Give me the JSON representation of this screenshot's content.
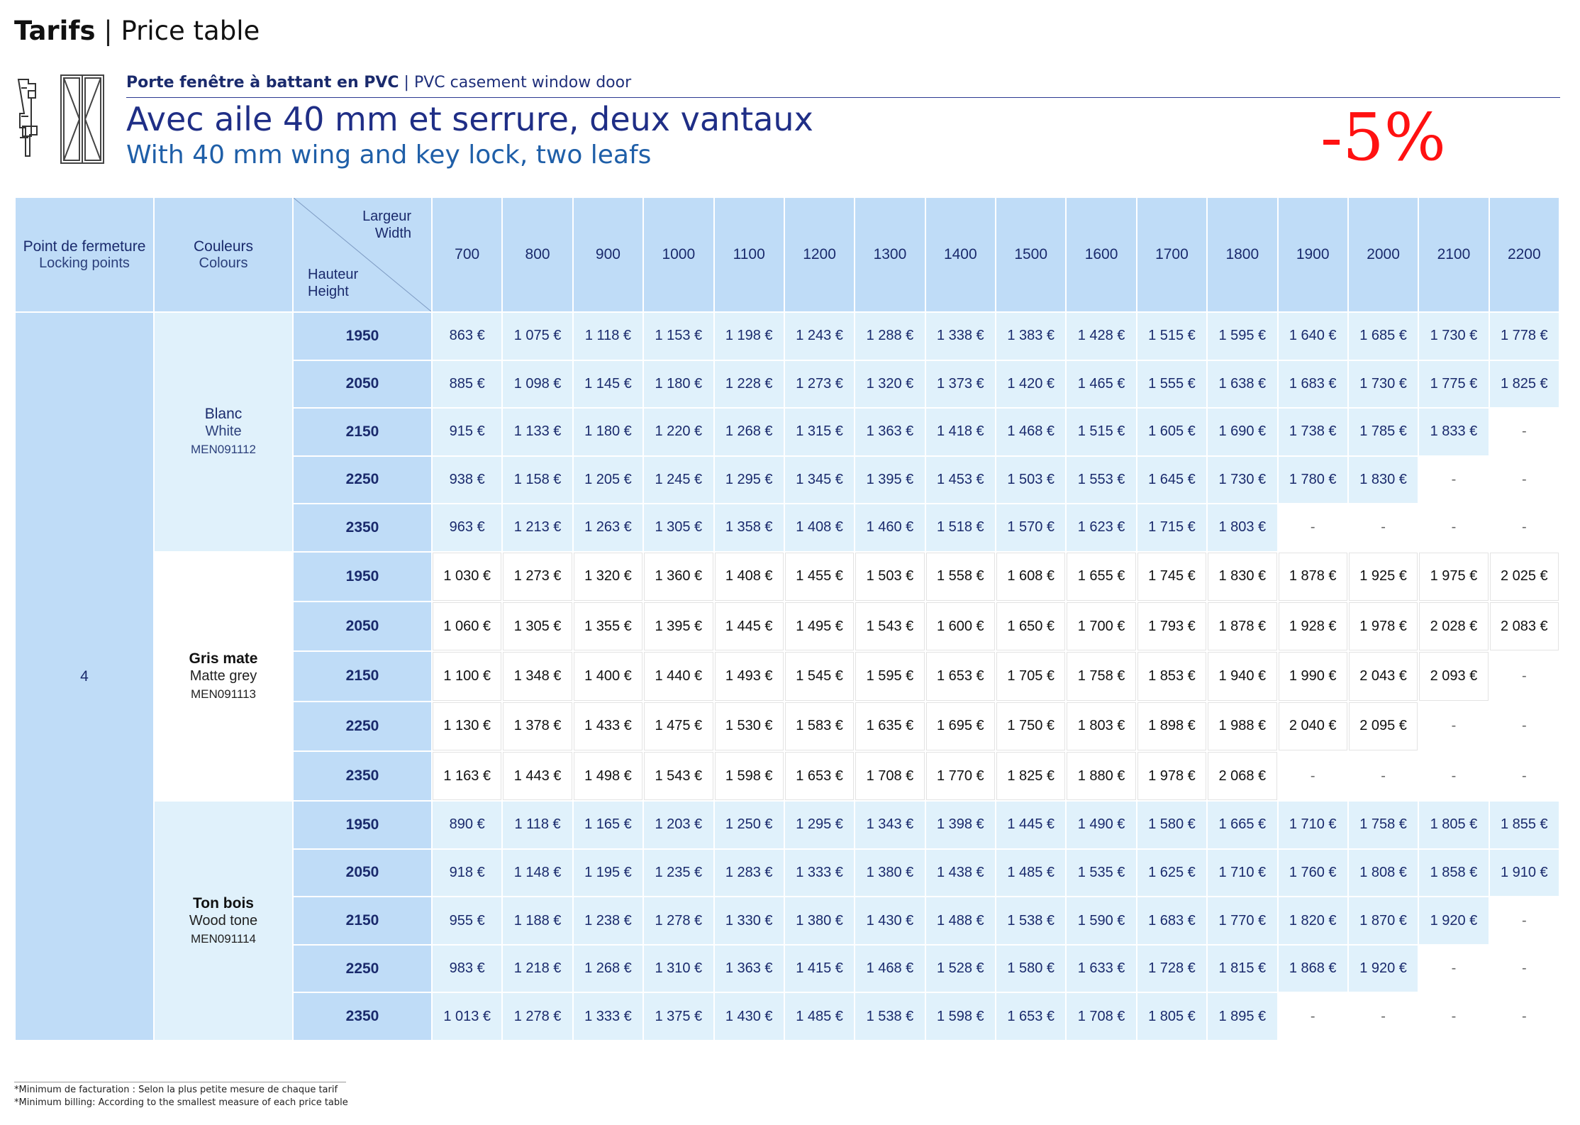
{
  "header": {
    "title_bold": "Tarifs",
    "title_sep": " | ",
    "title_rest": "Price table"
  },
  "product": {
    "line_fr": "Porte fenêtre à battant en PVC",
    "line_sep": " | ",
    "line_en": "PVC casement window door",
    "title_fr": "Avec aile 40 mm et serrure, deux vantaux",
    "title_en": "With 40 mm wing and key lock, two leafs",
    "icon": "window-door-icon"
  },
  "discount": "-5%",
  "table": {
    "locking_header_fr": "Point de fermeture",
    "locking_header_en": "Locking points",
    "colour_header_fr": "Couleurs",
    "colour_header_en": "Colours",
    "width_label_fr": "Largeur",
    "width_label_en": "Width",
    "height_label_fr": "Hauteur",
    "height_label_en": "Height",
    "locking_points": "4",
    "widths": [
      "700",
      "800",
      "900",
      "1000",
      "1100",
      "1200",
      "1300",
      "1400",
      "1500",
      "1600",
      "1700",
      "1800",
      "1900",
      "2000",
      "2100",
      "2200"
    ],
    "groups": [
      {
        "name_fr": "Blanc",
        "name_en": "White",
        "code": "MEN091112",
        "rows": [
          {
            "height": "1950",
            "prices": [
              "863 €",
              "1 075 €",
              "1 118 €",
              "1 153 €",
              "1 198 €",
              "1 243 €",
              "1 288 €",
              "1 338 €",
              "1 383 €",
              "1 428 €",
              "1 515 €",
              "1 595 €",
              "1 640 €",
              "1 685 €",
              "1 730 €",
              "1 778 €"
            ]
          },
          {
            "height": "2050",
            "prices": [
              "885 €",
              "1 098 €",
              "1 145 €",
              "1 180 €",
              "1 228 €",
              "1 273 €",
              "1 320 €",
              "1 373 €",
              "1 420 €",
              "1 465 €",
              "1 555 €",
              "1 638 €",
              "1 683 €",
              "1 730 €",
              "1 775 €",
              "1 825 €"
            ]
          },
          {
            "height": "2150",
            "prices": [
              "915 €",
              "1 133 €",
              "1 180 €",
              "1 220 €",
              "1 268 €",
              "1 315 €",
              "1 363 €",
              "1 418 €",
              "1 468 €",
              "1 515 €",
              "1 605 €",
              "1 690 €",
              "1 738 €",
              "1 785 €",
              "1 833 €",
              "-"
            ]
          },
          {
            "height": "2250",
            "prices": [
              "938 €",
              "1 158 €",
              "1 205 €",
              "1 245 €",
              "1 295 €",
              "1 345 €",
              "1 395 €",
              "1 453 €",
              "1 503 €",
              "1 553 €",
              "1 645 €",
              "1 730 €",
              "1 780 €",
              "1 830 €",
              "-",
              "-"
            ]
          },
          {
            "height": "2350",
            "prices": [
              "963 €",
              "1 213 €",
              "1 263 €",
              "1 305 €",
              "1 358 €",
              "1 408 €",
              "1 460 €",
              "1 518 €",
              "1 570 €",
              "1 623 €",
              "1 715 €",
              "1 803 €",
              "-",
              "-",
              "-",
              "-"
            ]
          }
        ]
      },
      {
        "name_fr": "Gris mate",
        "name_en": "Matte grey",
        "code": "MEN091113",
        "rows": [
          {
            "height": "1950",
            "prices": [
              "1 030 €",
              "1 273 €",
              "1 320 €",
              "1 360 €",
              "1 408 €",
              "1 455 €",
              "1 503 €",
              "1 558 €",
              "1 608 €",
              "1 655 €",
              "1 745 €",
              "1 830 €",
              "1 878 €",
              "1 925 €",
              "1 975 €",
              "2 025 €"
            ]
          },
          {
            "height": "2050",
            "prices": [
              "1 060 €",
              "1 305 €",
              "1 355 €",
              "1 395 €",
              "1 445 €",
              "1 495 €",
              "1 543 €",
              "1 600 €",
              "1 650 €",
              "1 700 €",
              "1 793 €",
              "1 878 €",
              "1 928 €",
              "1 978 €",
              "2 028 €",
              "2 083 €"
            ]
          },
          {
            "height": "2150",
            "prices": [
              "1 100 €",
              "1 348 €",
              "1 400 €",
              "1 440 €",
              "1 493 €",
              "1 545 €",
              "1 595 €",
              "1 653 €",
              "1 705 €",
              "1 758 €",
              "1 853 €",
              "1 940 €",
              "1 990 €",
              "2 043 €",
              "2 093 €",
              "-"
            ]
          },
          {
            "height": "2250",
            "prices": [
              "1 130 €",
              "1 378 €",
              "1 433 €",
              "1 475 €",
              "1 530 €",
              "1 583 €",
              "1 635 €",
              "1 695 €",
              "1 750 €",
              "1 803 €",
              "1 898 €",
              "1 988 €",
              "2 040 €",
              "2 095 €",
              "-",
              "-"
            ]
          },
          {
            "height": "2350",
            "prices": [
              "1 163 €",
              "1 443 €",
              "1 498 €",
              "1 543 €",
              "1 598 €",
              "1 653 €",
              "1 708 €",
              "1 770 €",
              "1 825 €",
              "1 880 €",
              "1 978 €",
              "2 068 €",
              "-",
              "-",
              "-",
              "-"
            ]
          }
        ]
      },
      {
        "name_fr": "Ton bois",
        "name_en": "Wood tone",
        "code": "MEN091114",
        "rows": [
          {
            "height": "1950",
            "prices": [
              "890 €",
              "1 118 €",
              "1 165 €",
              "1 203 €",
              "1 250 €",
              "1 295 €",
              "1 343 €",
              "1 398 €",
              "1 445 €",
              "1 490 €",
              "1 580 €",
              "1 665 €",
              "1 710 €",
              "1 758 €",
              "1 805 €",
              "1 855 €"
            ]
          },
          {
            "height": "2050",
            "prices": [
              "918 €",
              "1 148 €",
              "1 195 €",
              "1 235 €",
              "1 283 €",
              "1 333 €",
              "1 380 €",
              "1 438 €",
              "1 485 €",
              "1 535 €",
              "1 625 €",
              "1 710 €",
              "1 760 €",
              "1 808 €",
              "1 858 €",
              "1 910 €"
            ]
          },
          {
            "height": "2150",
            "prices": [
              "955 €",
              "1 188 €",
              "1 238 €",
              "1 278 €",
              "1 330 €",
              "1 380 €",
              "1 430 €",
              "1 488 €",
              "1 538 €",
              "1 590 €",
              "1 683 €",
              "1 770 €",
              "1 820 €",
              "1 870 €",
              "1 920 €",
              "-"
            ]
          },
          {
            "height": "2250",
            "prices": [
              "983 €",
              "1 218 €",
              "1 268 €",
              "1 310 €",
              "1 363 €",
              "1 415 €",
              "1 468 €",
              "1 528 €",
              "1 580 €",
              "1 633 €",
              "1 728 €",
              "1 815 €",
              "1 868 €",
              "1 920 €",
              "-",
              "-"
            ]
          },
          {
            "height": "2350",
            "prices": [
              "1 013 €",
              "1 278 €",
              "1 333 €",
              "1 375 €",
              "1 430 €",
              "1 485 €",
              "1 538 €",
              "1 598 €",
              "1 653 €",
              "1 708 €",
              "1 805 €",
              "1 895 €",
              "-",
              "-",
              "-",
              "-"
            ]
          }
        ]
      }
    ]
  },
  "footnote": {
    "fr": "*Minimum de facturation : Selon la plus petite mesure de chaque tarif",
    "en": "*Minimum billing: According to the smallest measure of each price table"
  }
}
